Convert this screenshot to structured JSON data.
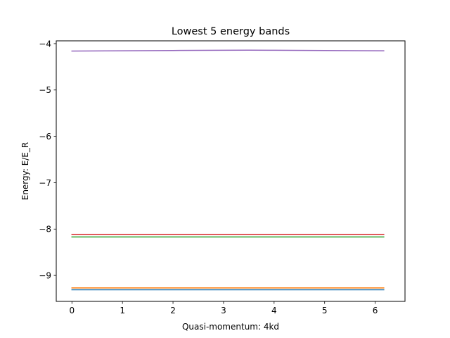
{
  "chart_data": {
    "type": "line",
    "title": "Lowest 5 energy bands",
    "xlabel": "Quasi-momentum: 4kd",
    "ylabel": "Energy: E/E_R",
    "xlim": [
      -0.31,
      6.59
    ],
    "ylim": [
      -9.56,
      -3.94
    ],
    "xticks": [
      0,
      1,
      2,
      3,
      4,
      5,
      6
    ],
    "xtick_labels": [
      "0",
      "1",
      "2",
      "3",
      "4",
      "5",
      "6"
    ],
    "yticks": [
      -9,
      -8,
      -7,
      -6,
      -5,
      -4
    ],
    "ytick_labels": [
      "−9",
      "−8",
      "−7",
      "−6",
      "−5",
      "−4"
    ],
    "grid": false,
    "legend": "none",
    "series": [
      {
        "color": "#1f77b4",
        "x": [
          0,
          1,
          2,
          3,
          4,
          5,
          6.17
        ],
        "y": [
          -9.31,
          -9.31,
          -9.31,
          -9.31,
          -9.31,
          -9.31,
          -9.31
        ]
      },
      {
        "color": "#ff7f0e",
        "x": [
          0,
          1,
          2,
          3,
          4,
          5,
          6.17
        ],
        "y": [
          -9.27,
          -9.27,
          -9.27,
          -9.27,
          -9.27,
          -9.27,
          -9.27
        ]
      },
      {
        "color": "#2ca02c",
        "x": [
          0,
          1,
          2,
          3,
          4,
          5,
          6.17
        ],
        "y": [
          -8.17,
          -8.17,
          -8.17,
          -8.17,
          -8.17,
          -8.17,
          -8.17
        ]
      },
      {
        "color": "#d62728",
        "x": [
          0,
          1,
          2,
          3,
          4,
          5,
          6.17
        ],
        "y": [
          -8.12,
          -8.12,
          -8.12,
          -8.12,
          -8.12,
          -8.12,
          -8.12
        ]
      },
      {
        "color": "#9467bd",
        "x": [
          0,
          1,
          2,
          3,
          3.5,
          4,
          5,
          6.17
        ],
        "y": [
          -4.16,
          -4.155,
          -4.148,
          -4.143,
          -4.142,
          -4.143,
          -4.148,
          -4.155
        ]
      }
    ]
  }
}
